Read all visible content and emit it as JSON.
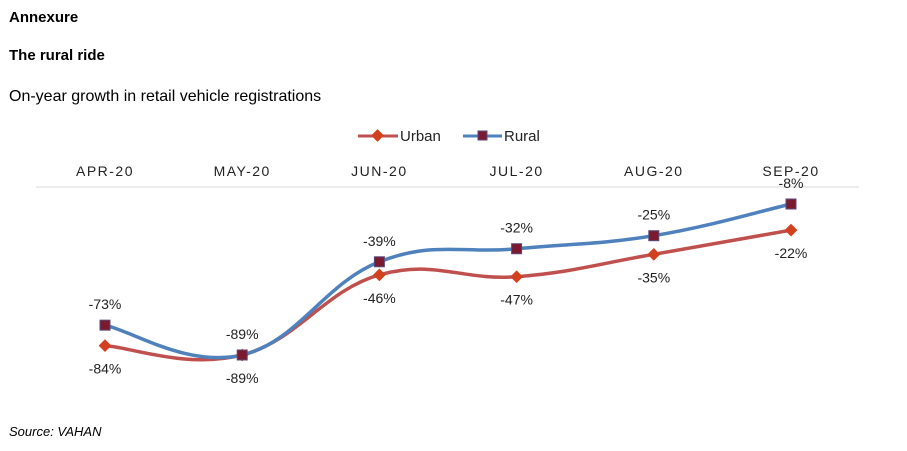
{
  "header": {
    "section": "Annexure",
    "title": "The rural ride",
    "subtitle": "On-year growth in retail vehicle registrations"
  },
  "source": "Source: VAHAN",
  "colors": {
    "urban": "#c0504d",
    "urban_marker": "#d2401e",
    "rural": "#4f81bd",
    "rural_marker": "#7b1a2e",
    "grid": "#d9d9d9"
  },
  "chart_data": {
    "type": "line",
    "title": "On-year growth in retail vehicle registrations",
    "categories": [
      "APR-20",
      "MAY-20",
      "JUN-20",
      "JUL-20",
      "AUG-20",
      "SEP-20"
    ],
    "series": [
      {
        "name": "Urban",
        "values": [
          -84,
          -89,
          -46,
          -47,
          -35,
          -22
        ],
        "labels": [
          "-84%",
          "-89%",
          "-46%",
          "-47%",
          "-35%",
          "-22%"
        ]
      },
      {
        "name": "Rural",
        "values": [
          -73,
          -89,
          -39,
          -32,
          -25,
          -8
        ],
        "labels": [
          "-73%",
          "-89%",
          "-39%",
          "-32%",
          "-25%",
          "-8%"
        ]
      }
    ],
    "xaxis_position": "top",
    "legend": "top-center",
    "smooth": true,
    "unit": "%"
  }
}
